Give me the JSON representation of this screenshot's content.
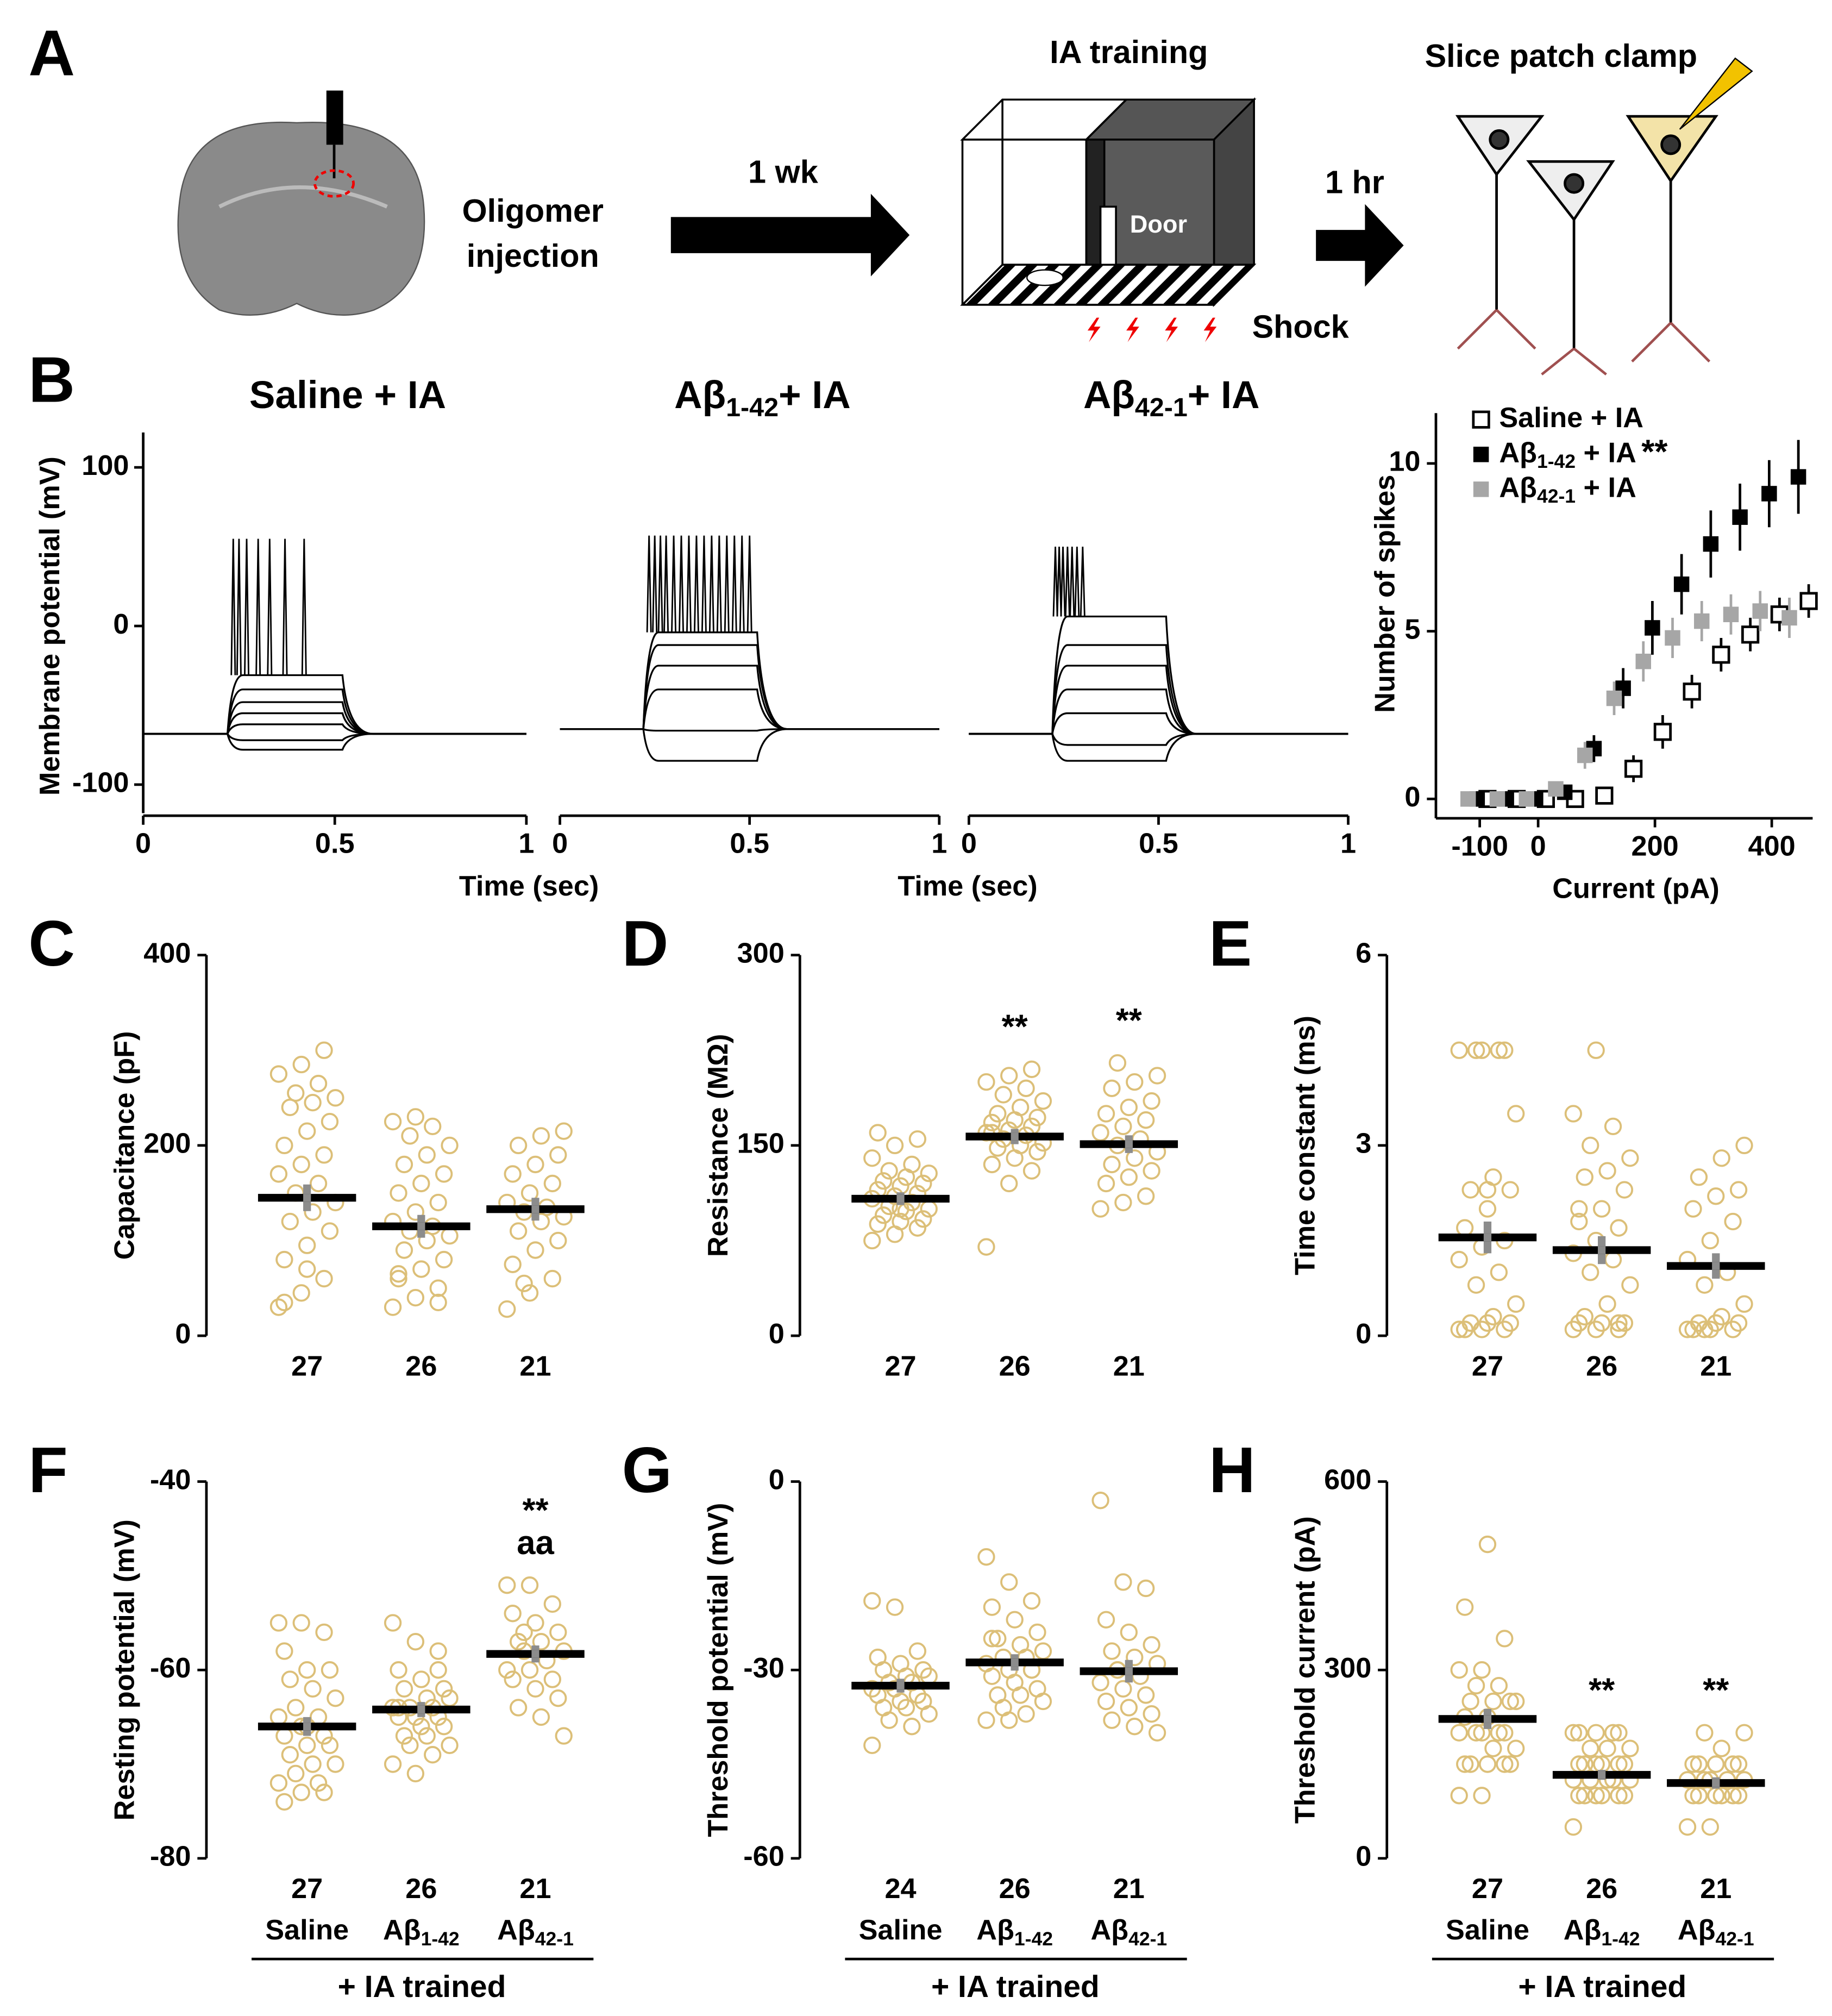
{
  "panel_a": {
    "label": "A",
    "injection": [
      "Oligomer",
      "injection"
    ],
    "delay1": "1 wk",
    "training": "IA training",
    "door": "Door",
    "shock": "Shock",
    "delay2": "1 hr",
    "recording": "Slice patch clamp"
  },
  "chart_data": [
    {
      "type": "traces",
      "panel_label": "B",
      "y_label": "Membrane potential (mV)",
      "x_label": "Time (sec)",
      "ylim": [
        -118,
        122
      ],
      "yticks": [
        100,
        0,
        -100
      ],
      "xlim": [
        0,
        1
      ],
      "xticks": [
        0,
        0.5,
        1
      ],
      "step": [
        0.22,
        0.52
      ],
      "panels": [
        {
          "title": [
            "Saline + IA"
          ],
          "baseline": -68,
          "levels": [
            -78,
            -72,
            -62,
            -55,
            -48,
            -40,
            -31
          ],
          "spike_times": [
            0.235,
            0.25,
            0.27,
            0.3,
            0.33,
            0.37,
            0.42
          ],
          "spike_peak": 55
        },
        {
          "title": [
            "Aβ",
            "1-42",
            "+ IA"
          ],
          "baseline": -65,
          "levels": [
            -85,
            -66,
            -40,
            -25,
            -12,
            -4
          ],
          "spike_times": [
            0.235,
            0.25,
            0.265,
            0.28,
            0.3,
            0.32,
            0.34,
            0.36,
            0.38,
            0.4,
            0.42,
            0.44,
            0.46,
            0.48,
            0.5
          ],
          "spike_peak": 57
        },
        {
          "title": [
            "Aβ",
            "42-1",
            "+ IA"
          ],
          "baseline": -68,
          "levels": [
            -85,
            -75,
            -55,
            -40,
            -25,
            -12,
            6
          ],
          "spike_times": [
            0.228,
            0.238,
            0.248,
            0.26,
            0.272,
            0.285,
            0.3
          ],
          "spike_peak": 50
        }
      ]
    },
    {
      "type": "line",
      "x_label": "Current (pA)",
      "y_label": "Number of spikes",
      "x": [
        -100,
        -50,
        0,
        50,
        100,
        150,
        200,
        250,
        300,
        350,
        400,
        450
      ],
      "xlim": [
        -175,
        470
      ],
      "xticks": [
        -100,
        0,
        200,
        400
      ],
      "ylim": [
        -0.5,
        11.5
      ],
      "yticks": [
        0,
        5,
        10
      ],
      "series": [
        {
          "name": [
            "Saline + IA"
          ],
          "marker": "open-square",
          "color": "#000000",
          "values": [
            0,
            0,
            0,
            0,
            0.1,
            0.9,
            2.0,
            3.2,
            4.3,
            4.9,
            5.5,
            5.9
          ],
          "errors": [
            0,
            0,
            0,
            0,
            0.1,
            0.4,
            0.5,
            0.5,
            0.5,
            0.5,
            0.5,
            0.5
          ]
        },
        {
          "name": [
            "Aβ",
            "1-42",
            " + IA"
          ],
          "annotation": "**",
          "marker": "square",
          "color": "#000000",
          "values": [
            0,
            0,
            0,
            0.2,
            1.5,
            3.3,
            5.1,
            6.4,
            7.6,
            8.4,
            9.1,
            9.6
          ],
          "errors": [
            0,
            0,
            0,
            0.1,
            0.4,
            0.6,
            0.8,
            0.9,
            1.0,
            1.0,
            1.0,
            1.1
          ]
        },
        {
          "name": [
            "Aβ",
            "42-1",
            " + IA"
          ],
          "marker": "square",
          "color": "#a6a6a6",
          "values": [
            0,
            0,
            0,
            0.3,
            1.3,
            3.0,
            4.1,
            4.8,
            5.3,
            5.5,
            5.6,
            5.4
          ],
          "errors": [
            0,
            0,
            0,
            0.1,
            0.4,
            0.5,
            0.6,
            0.6,
            0.6,
            0.6,
            0.6,
            0.6
          ]
        }
      ]
    },
    {
      "type": "dot",
      "panel_label": "C",
      "y_label": "Capacitance (pF)",
      "ylim": [
        0,
        400
      ],
      "yticks": [
        0,
        200,
        400
      ],
      "color": "#dcbf78",
      "groups": [
        {
          "n": 27,
          "mean": 145,
          "sem": 14,
          "values": [
            30,
            45,
            60,
            80,
            95,
            110,
            120,
            130,
            140,
            150,
            160,
            170,
            180,
            190,
            200,
            215,
            225,
            240,
            245,
            250,
            255,
            265,
            275,
            285,
            300,
            35,
            70
          ]
        },
        {
          "n": 26,
          "mean": 115,
          "sem": 12,
          "values": [
            30,
            40,
            50,
            60,
            70,
            80,
            90,
            100,
            105,
            110,
            115,
            120,
            130,
            140,
            150,
            160,
            170,
            180,
            190,
            200,
            210,
            220,
            225,
            230,
            35,
            65
          ]
        },
        {
          "n": 21,
          "mean": 133,
          "sem": 12,
          "values": [
            28,
            45,
            60,
            75,
            90,
            100,
            110,
            120,
            125,
            130,
            135,
            140,
            150,
            160,
            170,
            180,
            190,
            200,
            210,
            215,
            55
          ]
        }
      ]
    },
    {
      "type": "dot",
      "panel_label": "D",
      "y_label": "Resistance (MΩ)",
      "ylim": [
        0,
        300
      ],
      "yticks": [
        0,
        150,
        300
      ],
      "color": "#dcbf78",
      "groups": [
        {
          "n": 27,
          "mean": 108,
          "sem": 5,
          "values": [
            75,
            80,
            85,
            88,
            90,
            92,
            95,
            98,
            100,
            102,
            105,
            108,
            110,
            112,
            115,
            118,
            120,
            122,
            125,
            128,
            130,
            135,
            140,
            150,
            155,
            160,
            100
          ]
        },
        {
          "n": 26,
          "mean": 157,
          "sem": 6,
          "annotations": [
            "**"
          ],
          "values": [
            70,
            120,
            130,
            135,
            140,
            145,
            148,
            150,
            152,
            155,
            158,
            160,
            162,
            165,
            168,
            170,
            172,
            175,
            180,
            185,
            190,
            195,
            200,
            205,
            210,
            160
          ]
        },
        {
          "n": 21,
          "mean": 151,
          "sem": 7,
          "annotations": [
            "**"
          ],
          "values": [
            100,
            105,
            110,
            120,
            125,
            130,
            135,
            140,
            145,
            150,
            155,
            160,
            165,
            170,
            175,
            180,
            185,
            195,
            200,
            205,
            215
          ]
        }
      ]
    },
    {
      "type": "dot",
      "panel_label": "E",
      "y_label": "Time constant (ms)",
      "ylim": [
        0,
        6
      ],
      "yticks": [
        0,
        3,
        6
      ],
      "color": "#dcbf78",
      "groups": [
        {
          "n": 27,
          "mean": 1.55,
          "sem": 0.25,
          "values": [
            0.1,
            0.1,
            0.1,
            0.1,
            0.2,
            0.2,
            0.2,
            0.3,
            0.5,
            0.8,
            1.0,
            1.2,
            1.4,
            1.5,
            1.7,
            2.0,
            2.3,
            2.3,
            2.5,
            3.5,
            4.5,
            4.5,
            4.5,
            4.5,
            4.5,
            0.1,
            2.3
          ]
        },
        {
          "n": 26,
          "mean": 1.35,
          "sem": 0.22,
          "values": [
            0.1,
            0.1,
            0.2,
            0.2,
            0.2,
            0.2,
            0.3,
            0.5,
            0.8,
            1.0,
            1.2,
            1.3,
            1.5,
            1.7,
            1.8,
            2.0,
            2.3,
            2.5,
            2.6,
            2.8,
            3.0,
            3.3,
            3.5,
            4.5,
            0.1,
            2.0
          ]
        },
        {
          "n": 21,
          "mean": 1.1,
          "sem": 0.2,
          "values": [
            0.1,
            0.1,
            0.1,
            0.1,
            0.2,
            0.2,
            0.2,
            0.3,
            0.5,
            0.8,
            1.0,
            1.2,
            1.5,
            1.8,
            2.0,
            2.2,
            2.3,
            2.5,
            2.8,
            3.0,
            0.1
          ]
        }
      ]
    },
    {
      "type": "dot",
      "panel_label": "F",
      "y_label": "Resting potential (mV)",
      "ylim": [
        -80,
        -40
      ],
      "yticks": [
        -80,
        -60,
        -40
      ],
      "color": "#dcbf78",
      "footer": "+ IA trained",
      "groups": [
        {
          "n": 27,
          "name": [
            "Saline"
          ],
          "mean": -66,
          "sem": 1.0,
          "values": [
            -55,
            -55,
            -56,
            -58,
            -60,
            -60,
            -61,
            -62,
            -63,
            -64,
            -65,
            -65,
            -66,
            -67,
            -67,
            -68,
            -68,
            -69,
            -70,
            -70,
            -71,
            -72,
            -72,
            -73,
            -73,
            -74,
            -66
          ]
        },
        {
          "n": 26,
          "name": [
            "Aβ",
            "1-42"
          ],
          "mean": -64.2,
          "sem": 0.8,
          "values": [
            -55,
            -57,
            -58,
            -60,
            -61,
            -62,
            -62,
            -63,
            -63,
            -64,
            -64,
            -64,
            -65,
            -65,
            -65,
            -66,
            -66,
            -67,
            -67,
            -68,
            -68,
            -69,
            -70,
            -71,
            -60,
            -64
          ]
        },
        {
          "n": 21,
          "name": [
            "Aβ",
            "42-1"
          ],
          "mean": -58.3,
          "sem": 0.9,
          "annotations": [
            "**",
            "aa"
          ],
          "values": [
            -51,
            -51,
            -53,
            -54,
            -55,
            -56,
            -57,
            -57,
            -58,
            -58,
            -59,
            -60,
            -60,
            -61,
            -61,
            -62,
            -63,
            -64,
            -65,
            -67,
            -56
          ]
        }
      ]
    },
    {
      "type": "dot",
      "panel_label": "G",
      "y_label": "Threshold potential (mV)",
      "ylim": [
        -60,
        0
      ],
      "yticks": [
        -60,
        -30,
        0
      ],
      "color": "#dcbf78",
      "footer": "+ IA trained",
      "groups": [
        {
          "n": 24,
          "name": [
            "Saline"
          ],
          "mean": -32.5,
          "sem": 1.1,
          "values": [
            -19,
            -20,
            -27,
            -28,
            -29,
            -30,
            -30,
            -31,
            -31,
            -32,
            -32,
            -33,
            -33,
            -34,
            -34,
            -35,
            -35,
            -36,
            -36,
            -37,
            -38,
            -39,
            -42,
            -33
          ]
        },
        {
          "n": 26,
          "name": [
            "Aβ",
            "1-42"
          ],
          "mean": -28.8,
          "sem": 1.3,
          "values": [
            -12,
            -16,
            -19,
            -20,
            -22,
            -24,
            -25,
            -26,
            -27,
            -28,
            -28,
            -29,
            -30,
            -30,
            -31,
            -32,
            -33,
            -34,
            -34,
            -35,
            -36,
            -37,
            -38,
            -38,
            -30,
            -25
          ]
        },
        {
          "n": 21,
          "name": [
            "Aβ",
            "42-1"
          ],
          "mean": -30.2,
          "sem": 1.8,
          "values": [
            -3,
            -16,
            -17,
            -22,
            -24,
            -26,
            -27,
            -28,
            -29,
            -30,
            -31,
            -32,
            -33,
            -34,
            -35,
            -36,
            -37,
            -38,
            -39,
            -40,
            -30
          ]
        }
      ]
    },
    {
      "type": "dot",
      "panel_label": "H",
      "y_label": "Threshold current (pA)",
      "ylim": [
        0,
        600
      ],
      "yticks": [
        0,
        300,
        600
      ],
      "color": "#dcbf78",
      "footer": "+ IA trained",
      "groups": [
        {
          "n": 27,
          "name": [
            "Saline"
          ],
          "mean": 222,
          "sem": 16,
          "values": [
            100,
            100,
            150,
            150,
            150,
            150,
            150,
            175,
            175,
            200,
            200,
            200,
            200,
            200,
            225,
            225,
            250,
            250,
            250,
            250,
            275,
            275,
            300,
            300,
            350,
            400,
            500
          ]
        },
        {
          "n": 26,
          "name": [
            "Aβ",
            "1-42"
          ],
          "mean": 133,
          "sem": 8,
          "annotations": [
            "**"
          ],
          "values": [
            50,
            100,
            100,
            100,
            100,
            100,
            100,
            125,
            125,
            125,
            125,
            125,
            150,
            150,
            150,
            150,
            150,
            150,
            175,
            175,
            175,
            200,
            200,
            200,
            200,
            200
          ]
        },
        {
          "n": 21,
          "name": [
            "Aβ",
            "42-1"
          ],
          "mean": 120,
          "sem": 9,
          "annotations": [
            "**"
          ],
          "values": [
            50,
            50,
            100,
            100,
            100,
            100,
            100,
            100,
            125,
            125,
            125,
            125,
            125,
            150,
            150,
            150,
            150,
            150,
            175,
            200,
            200
          ]
        }
      ]
    }
  ]
}
